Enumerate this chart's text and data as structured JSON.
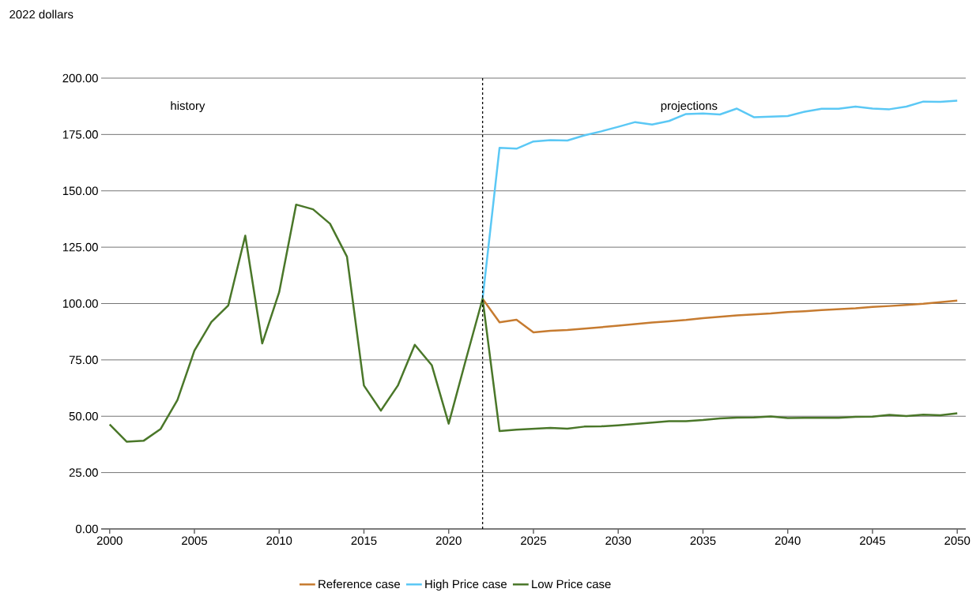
{
  "chart_data": {
    "type": "line",
    "ylabel": "2022 dollars",
    "annotations": [
      "history",
      "projections"
    ],
    "series": [
      {
        "name": "Reference case",
        "color": "#c67b30",
        "x": [
          2022,
          2023,
          2024,
          2025,
          2026,
          2027,
          2028,
          2029,
          2030,
          2031,
          2032,
          2033,
          2034,
          2035,
          2036,
          2037,
          2038,
          2039,
          2040,
          2041,
          2042,
          2043,
          2044,
          2045,
          2046,
          2047,
          2048,
          2049,
          2050
        ],
        "values": [
          102.1,
          91.7,
          92.8,
          87.2,
          87.9,
          88.3,
          88.9,
          89.5,
          90.2,
          90.9,
          91.6,
          92.1,
          92.7,
          93.5,
          94.1,
          94.7,
          95.2,
          95.6,
          96.2,
          96.6,
          97.1,
          97.5,
          97.9,
          98.5,
          98.9,
          99.4,
          99.9,
          100.6,
          101.3
        ]
      },
      {
        "name": "High Price case",
        "color": "#5bc8f5",
        "x": [
          2022,
          2023,
          2024,
          2025,
          2026,
          2027,
          2028,
          2029,
          2030,
          2031,
          2032,
          2033,
          2034,
          2035,
          2036,
          2037,
          2038,
          2039,
          2040,
          2041,
          2042,
          2043,
          2044,
          2045,
          2046,
          2047,
          2048,
          2049,
          2050
        ],
        "values": [
          102.1,
          169.1,
          168.7,
          171.9,
          172.5,
          172.3,
          174.6,
          176.4,
          178.4,
          180.5,
          179.4,
          181.0,
          184.1,
          184.3,
          183.9,
          186.5,
          182.7,
          182.9,
          183.2,
          185.1,
          186.4,
          186.4,
          187.4,
          186.5,
          186.2,
          187.4,
          189.6,
          189.5,
          190.0
        ]
      },
      {
        "name": "Low Price case",
        "color": "#4a7729",
        "x": [
          2000,
          2001,
          2002,
          2003,
          2004,
          2005,
          2006,
          2007,
          2008,
          2009,
          2010,
          2011,
          2012,
          2013,
          2014,
          2015,
          2016,
          2017,
          2018,
          2019,
          2020,
          2021,
          2022,
          2023,
          2024,
          2025,
          2026,
          2027,
          2028,
          2029,
          2030,
          2031,
          2032,
          2033,
          2034,
          2035,
          2036,
          2037,
          2038,
          2039,
          2040,
          2041,
          2042,
          2043,
          2044,
          2045,
          2046,
          2047,
          2048,
          2049,
          2050
        ],
        "values": [
          46.4,
          38.7,
          39.1,
          44.3,
          57.2,
          79.1,
          91.8,
          99.2,
          130.1,
          82.3,
          105.0,
          143.9,
          141.8,
          135.4,
          120.8,
          63.6,
          52.5,
          63.6,
          81.7,
          72.7,
          46.7,
          74.7,
          102.1,
          43.4,
          44.0,
          44.4,
          44.8,
          44.5,
          45.4,
          45.5,
          46.0,
          46.6,
          47.2,
          47.8,
          47.8,
          48.3,
          49.0,
          49.4,
          49.5,
          49.9,
          49.2,
          49.3,
          49.3,
          49.3,
          49.7,
          49.8,
          50.6,
          50.1,
          50.7,
          50.4,
          51.3
        ]
      }
    ],
    "xlim": [
      1999.5,
      2050.5
    ],
    "xticks": [
      2000,
      2005,
      2010,
      2015,
      2020,
      2025,
      2030,
      2035,
      2040,
      2045,
      2050
    ],
    "ylim": [
      0,
      200
    ],
    "yticks": [
      {
        "value": 0,
        "label": "0.00"
      },
      {
        "value": 25,
        "label": "25.00"
      },
      {
        "value": 50,
        "label": "50.00"
      },
      {
        "value": 75,
        "label": "75.00"
      },
      {
        "value": 100,
        "label": "100.00"
      },
      {
        "value": 125,
        "label": "125.00"
      },
      {
        "value": 150,
        "label": "150.00"
      },
      {
        "value": 175,
        "label": "175.00"
      },
      {
        "value": 200,
        "label": "200.00"
      }
    ],
    "ref_lines": [
      {
        "axis": "x",
        "value": 2022,
        "color": "#000000",
        "line_style": "dashed"
      }
    ],
    "grid": "y",
    "legend": "bottom",
    "marker": "none",
    "line_style": "solid"
  }
}
